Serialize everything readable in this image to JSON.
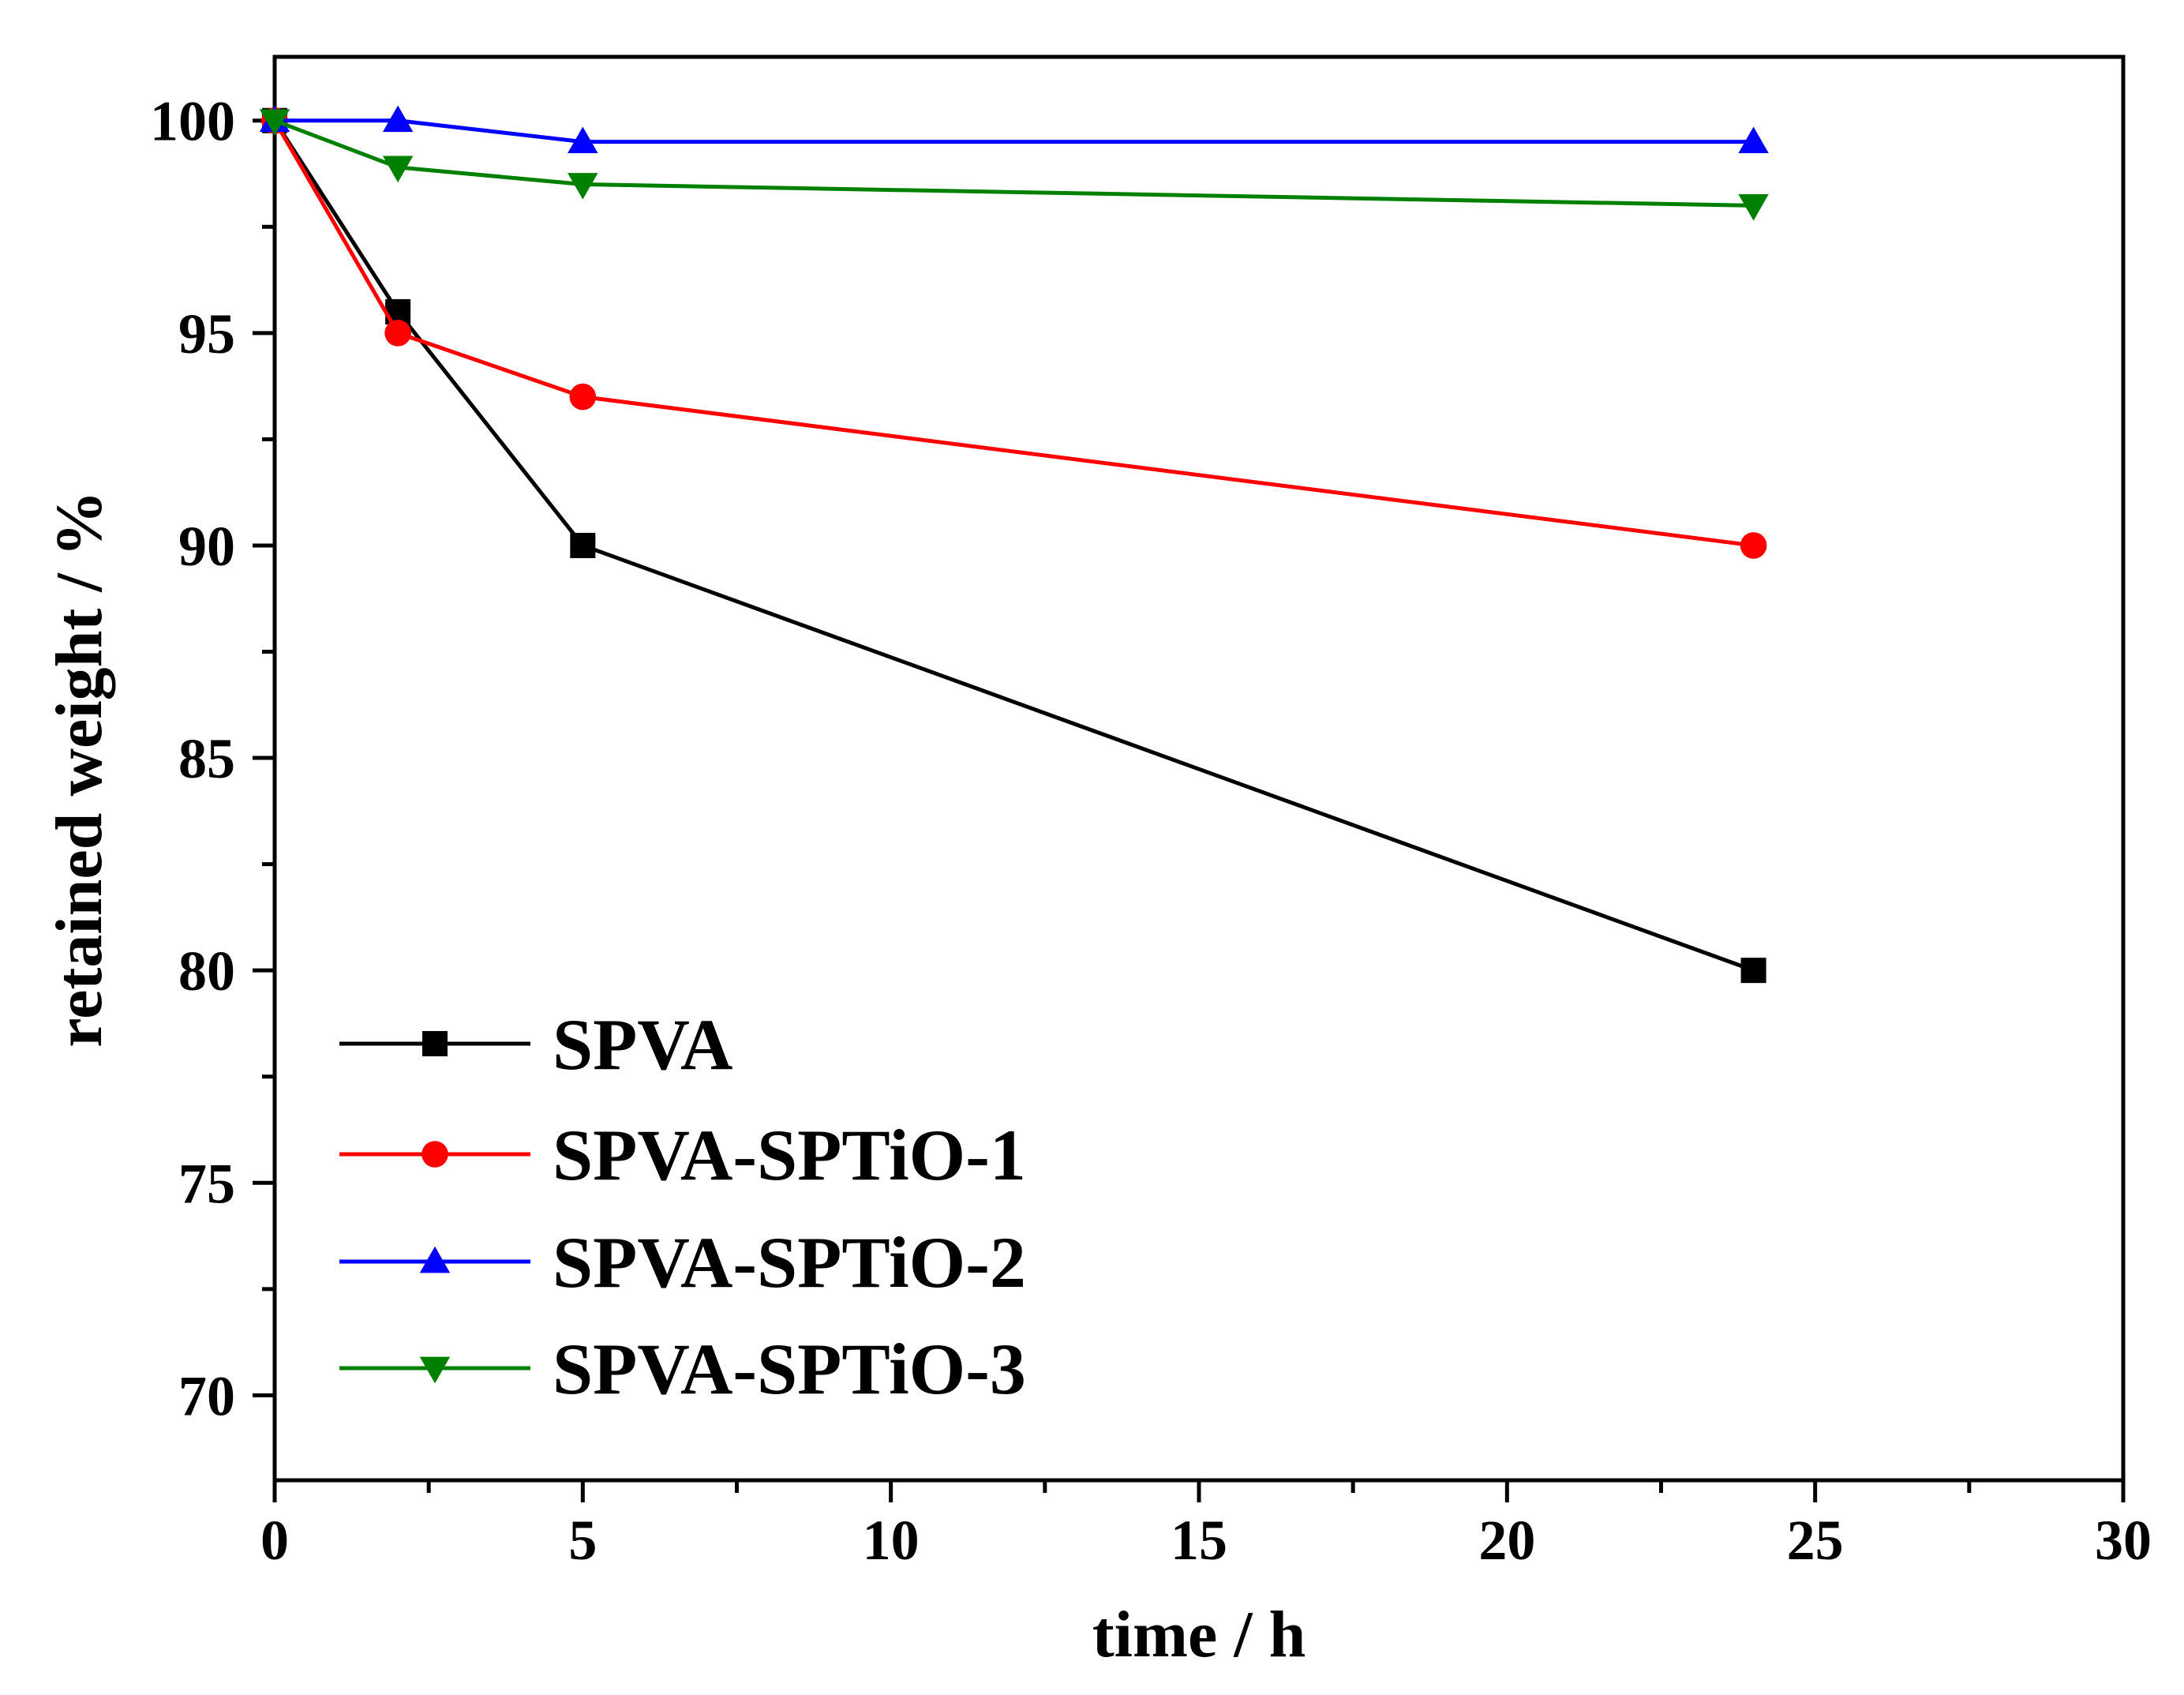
{
  "chart_data": {
    "type": "line",
    "title": "",
    "xlabel": "time / h",
    "ylabel": "retained weight / %",
    "xlim": [
      0,
      30
    ],
    "ylim": [
      68,
      101.5
    ],
    "x_ticks": [
      0,
      5,
      10,
      15,
      20,
      25,
      30
    ],
    "y_ticks": [
      70,
      75,
      80,
      85,
      90,
      95,
      100
    ],
    "grid": false,
    "legend": "bottom-left",
    "x": [
      0,
      2,
      5,
      24
    ],
    "series": [
      {
        "name": "SPVA",
        "values": [
          100,
          95.5,
          90,
          80
        ],
        "color": "#000000",
        "marker": "square"
      },
      {
        "name": "SPVA-SPTiO-1",
        "values": [
          100,
          95,
          93.5,
          90
        ],
        "color": "#ff0000",
        "marker": "circle"
      },
      {
        "name": "SPVA-SPTiO-2",
        "values": [
          100,
          100,
          99.5,
          99.5
        ],
        "color": "#0000ff",
        "marker": "triangle-up"
      },
      {
        "name": "SPVA-SPTiO-3",
        "values": [
          100,
          98.9,
          98.5,
          98
        ],
        "color": "#008000",
        "marker": "triangle-down"
      }
    ]
  }
}
